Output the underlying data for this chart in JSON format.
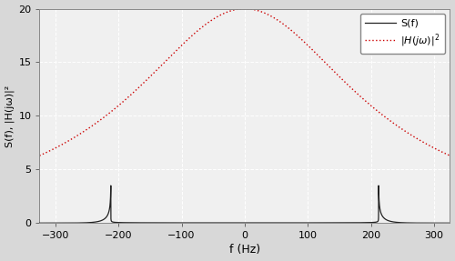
{
  "xlim": [
    -325,
    325
  ],
  "ylim": [
    0,
    20.5
  ],
  "ylim_display": [
    0,
    20
  ],
  "xticks": [
    -300,
    -200,
    -100,
    0,
    100,
    200,
    300
  ],
  "yticks": [
    0,
    5,
    10,
    15,
    20
  ],
  "xlabel": "f (Hz)",
  "ylabel": "S(f), |H(jω)|²",
  "bg_color": "#d8d8d8",
  "plot_bg_color": "#f0f0f0",
  "grid_color": "#ffffff",
  "s_color": "#222222",
  "h_color": "#cc0000",
  "fc": 220,
  "fd": 212,
  "s_scale": 3.5,
  "figsize": [
    5.0,
    2.87
  ],
  "dpi": 100
}
